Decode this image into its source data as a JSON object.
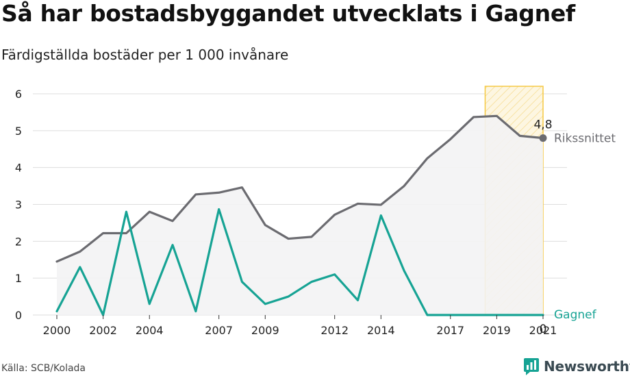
{
  "header": {
    "title": "Så har bostadsbyggandet utvecklats i Gagnef",
    "subtitle": "Färdigställda bostäder per 1 000 invånare"
  },
  "footer": {
    "source": "Källa: SCB/Kolada",
    "brand": "Newsworthy",
    "brand_icon": "newsworthy-logo-icon"
  },
  "colors": {
    "national": "#6b6b70",
    "local": "#16a394",
    "highlight_stroke": "#f5c842",
    "highlight_fill": "#fdf3d6",
    "area_fill": "#f3f3f4",
    "grid": "#dddddd"
  },
  "chart_data": {
    "type": "line",
    "title": "Så har bostadsbyggandet utvecklats i Gagnef",
    "ylabel": "Färdigställda bostäder per 1 000 invånare",
    "xlabel": "",
    "ylim": [
      0,
      6
    ],
    "xlim": [
      2000,
      2021
    ],
    "yticks": [
      "0",
      "1",
      "2",
      "3",
      "4",
      "5",
      "6"
    ],
    "xticks": [
      "2000",
      "2002",
      "2004",
      "2007",
      "2009",
      "2012",
      "2014",
      "2017",
      "2019",
      "2021"
    ],
    "grid": true,
    "highlight_range": [
      2018.5,
      2021
    ],
    "x": [
      2000,
      2001,
      2002,
      2003,
      2004,
      2005,
      2006,
      2007,
      2008,
      2009,
      2010,
      2011,
      2012,
      2013,
      2014,
      2015,
      2016,
      2017,
      2018,
      2019,
      2020,
      2021
    ],
    "series": [
      {
        "name": "Rikssnittet",
        "values": [
          1.45,
          1.72,
          2.22,
          2.22,
          2.8,
          2.55,
          3.27,
          3.32,
          3.46,
          2.44,
          2.07,
          2.12,
          2.72,
          3.02,
          2.99,
          3.5,
          4.25,
          4.77,
          5.37,
          5.4,
          4.86,
          4.8
        ],
        "end_label": "4,8"
      },
      {
        "name": "Gagnef",
        "values": [
          0.1,
          1.3,
          0.0,
          2.8,
          0.3,
          1.9,
          0.1,
          2.87,
          0.9,
          0.3,
          0.5,
          0.9,
          1.1,
          0.4,
          2.7,
          1.2,
          0.0,
          0.0,
          0.0,
          0.0,
          0.0,
          0.0
        ],
        "end_label": "0"
      }
    ]
  }
}
